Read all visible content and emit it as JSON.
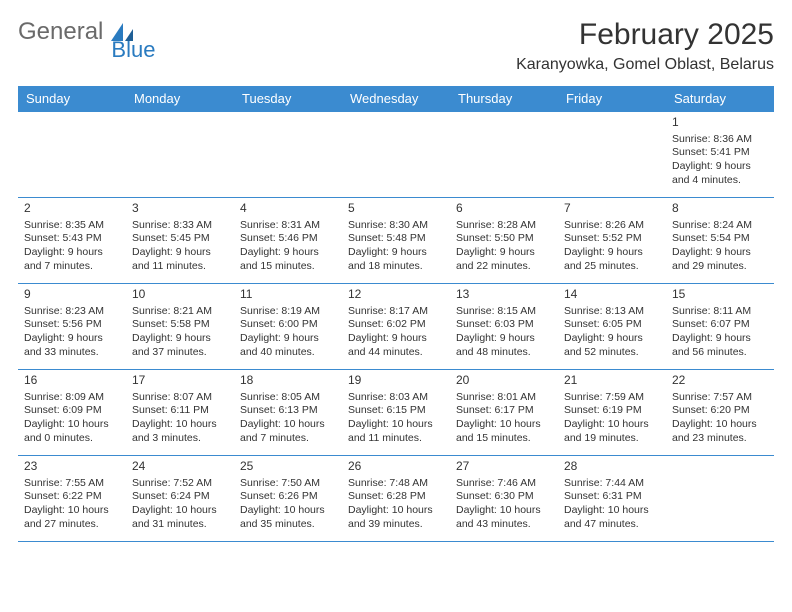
{
  "logo": {
    "text1": "General",
    "text2": "Blue"
  },
  "title": "February 2025",
  "location": "Karanyowka, Gomel Oblast, Belarus",
  "colors": {
    "header_bg": "#3b8bd0",
    "header_text": "#ffffff",
    "border": "#3b8bd0",
    "logo_blue": "#2a7bc0",
    "logo_gray": "#6a6a6a",
    "text": "#333333",
    "background": "#ffffff"
  },
  "day_headers": [
    "Sunday",
    "Monday",
    "Tuesday",
    "Wednesday",
    "Thursday",
    "Friday",
    "Saturday"
  ],
  "weeks": [
    [
      null,
      null,
      null,
      null,
      null,
      null,
      {
        "day": 1,
        "sunrise": "8:36 AM",
        "sunset": "5:41 PM",
        "daylight": "9 hours and 4 minutes."
      }
    ],
    [
      {
        "day": 2,
        "sunrise": "8:35 AM",
        "sunset": "5:43 PM",
        "daylight": "9 hours and 7 minutes."
      },
      {
        "day": 3,
        "sunrise": "8:33 AM",
        "sunset": "5:45 PM",
        "daylight": "9 hours and 11 minutes."
      },
      {
        "day": 4,
        "sunrise": "8:31 AM",
        "sunset": "5:46 PM",
        "daylight": "9 hours and 15 minutes."
      },
      {
        "day": 5,
        "sunrise": "8:30 AM",
        "sunset": "5:48 PM",
        "daylight": "9 hours and 18 minutes."
      },
      {
        "day": 6,
        "sunrise": "8:28 AM",
        "sunset": "5:50 PM",
        "daylight": "9 hours and 22 minutes."
      },
      {
        "day": 7,
        "sunrise": "8:26 AM",
        "sunset": "5:52 PM",
        "daylight": "9 hours and 25 minutes."
      },
      {
        "day": 8,
        "sunrise": "8:24 AM",
        "sunset": "5:54 PM",
        "daylight": "9 hours and 29 minutes."
      }
    ],
    [
      {
        "day": 9,
        "sunrise": "8:23 AM",
        "sunset": "5:56 PM",
        "daylight": "9 hours and 33 minutes."
      },
      {
        "day": 10,
        "sunrise": "8:21 AM",
        "sunset": "5:58 PM",
        "daylight": "9 hours and 37 minutes."
      },
      {
        "day": 11,
        "sunrise": "8:19 AM",
        "sunset": "6:00 PM",
        "daylight": "9 hours and 40 minutes."
      },
      {
        "day": 12,
        "sunrise": "8:17 AM",
        "sunset": "6:02 PM",
        "daylight": "9 hours and 44 minutes."
      },
      {
        "day": 13,
        "sunrise": "8:15 AM",
        "sunset": "6:03 PM",
        "daylight": "9 hours and 48 minutes."
      },
      {
        "day": 14,
        "sunrise": "8:13 AM",
        "sunset": "6:05 PM",
        "daylight": "9 hours and 52 minutes."
      },
      {
        "day": 15,
        "sunrise": "8:11 AM",
        "sunset": "6:07 PM",
        "daylight": "9 hours and 56 minutes."
      }
    ],
    [
      {
        "day": 16,
        "sunrise": "8:09 AM",
        "sunset": "6:09 PM",
        "daylight": "10 hours and 0 minutes."
      },
      {
        "day": 17,
        "sunrise": "8:07 AM",
        "sunset": "6:11 PM",
        "daylight": "10 hours and 3 minutes."
      },
      {
        "day": 18,
        "sunrise": "8:05 AM",
        "sunset": "6:13 PM",
        "daylight": "10 hours and 7 minutes."
      },
      {
        "day": 19,
        "sunrise": "8:03 AM",
        "sunset": "6:15 PM",
        "daylight": "10 hours and 11 minutes."
      },
      {
        "day": 20,
        "sunrise": "8:01 AM",
        "sunset": "6:17 PM",
        "daylight": "10 hours and 15 minutes."
      },
      {
        "day": 21,
        "sunrise": "7:59 AM",
        "sunset": "6:19 PM",
        "daylight": "10 hours and 19 minutes."
      },
      {
        "day": 22,
        "sunrise": "7:57 AM",
        "sunset": "6:20 PM",
        "daylight": "10 hours and 23 minutes."
      }
    ],
    [
      {
        "day": 23,
        "sunrise": "7:55 AM",
        "sunset": "6:22 PM",
        "daylight": "10 hours and 27 minutes."
      },
      {
        "day": 24,
        "sunrise": "7:52 AM",
        "sunset": "6:24 PM",
        "daylight": "10 hours and 31 minutes."
      },
      {
        "day": 25,
        "sunrise": "7:50 AM",
        "sunset": "6:26 PM",
        "daylight": "10 hours and 35 minutes."
      },
      {
        "day": 26,
        "sunrise": "7:48 AM",
        "sunset": "6:28 PM",
        "daylight": "10 hours and 39 minutes."
      },
      {
        "day": 27,
        "sunrise": "7:46 AM",
        "sunset": "6:30 PM",
        "daylight": "10 hours and 43 minutes."
      },
      {
        "day": 28,
        "sunrise": "7:44 AM",
        "sunset": "6:31 PM",
        "daylight": "10 hours and 47 minutes."
      },
      null
    ]
  ],
  "labels": {
    "sunrise": "Sunrise:",
    "sunset": "Sunset:",
    "daylight": "Daylight:"
  }
}
